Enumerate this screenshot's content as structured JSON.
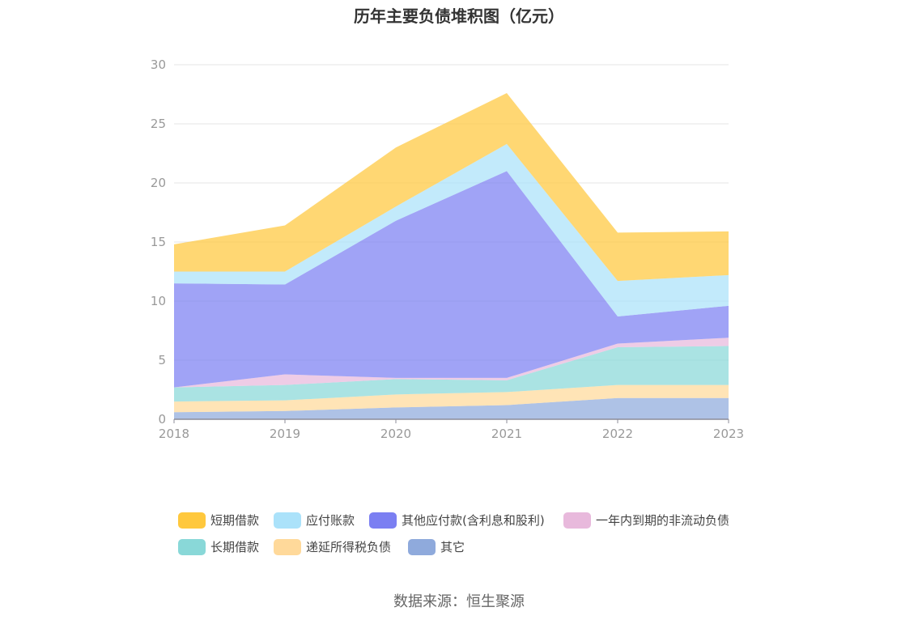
{
  "title": "历年主要负债堆积图（亿元）",
  "source": "数据来源：恒生聚源",
  "chart_data": {
    "type": "area",
    "stacked": true,
    "title": "历年主要负债堆积图（亿元）",
    "xlabel": "",
    "ylabel": "",
    "categories": [
      "2018",
      "2019",
      "2020",
      "2021",
      "2022",
      "2023"
    ],
    "ylim": [
      0,
      30
    ],
    "yticks": [
      0,
      5,
      10,
      15,
      20,
      25,
      30
    ],
    "grid": true,
    "legend_position": "bottom",
    "series": [
      {
        "name": "其它",
        "color": "#8faadc",
        "values": [
          0.6,
          0.7,
          1.0,
          1.2,
          1.8,
          1.8
        ]
      },
      {
        "name": "递延所得税负债",
        "color": "#ffd99a",
        "values": [
          0.9,
          0.9,
          1.1,
          1.1,
          1.1,
          1.1
        ]
      },
      {
        "name": "长期借款",
        "color": "#89d8d8",
        "values": [
          1.2,
          1.3,
          1.3,
          1.0,
          3.2,
          3.3
        ]
      },
      {
        "name": "一年内到期的非流动负债",
        "color": "#e8b9dc",
        "values": [
          0.0,
          0.9,
          0.1,
          0.2,
          0.3,
          0.7
        ]
      },
      {
        "name": "其他应付款(含利息和股利)",
        "color": "#7b7ff2",
        "values": [
          8.8,
          7.6,
          13.3,
          17.5,
          2.3,
          2.7
        ]
      },
      {
        "name": "应付账款",
        "color": "#abe2fa",
        "values": [
          1.0,
          1.1,
          1.2,
          2.3,
          3.0,
          2.6
        ]
      },
      {
        "name": "短期借款",
        "color": "#ffc83d",
        "values": [
          2.3,
          3.9,
          5.0,
          4.3,
          4.1,
          3.7
        ]
      }
    ]
  },
  "legend": [
    {
      "label": "短期借款",
      "color": "#ffc83d"
    },
    {
      "label": "应付账款",
      "color": "#abe2fa"
    },
    {
      "label": "其他应付款(含利息和股利)",
      "color": "#7b7ff2"
    },
    {
      "label": "一年内到期的非流动负债",
      "color": "#e8b9dc"
    },
    {
      "label": "长期借款",
      "color": "#89d8d8"
    },
    {
      "label": "递延所得税负债",
      "color": "#ffd99a"
    },
    {
      "label": "其它",
      "color": "#8faadc"
    }
  ]
}
